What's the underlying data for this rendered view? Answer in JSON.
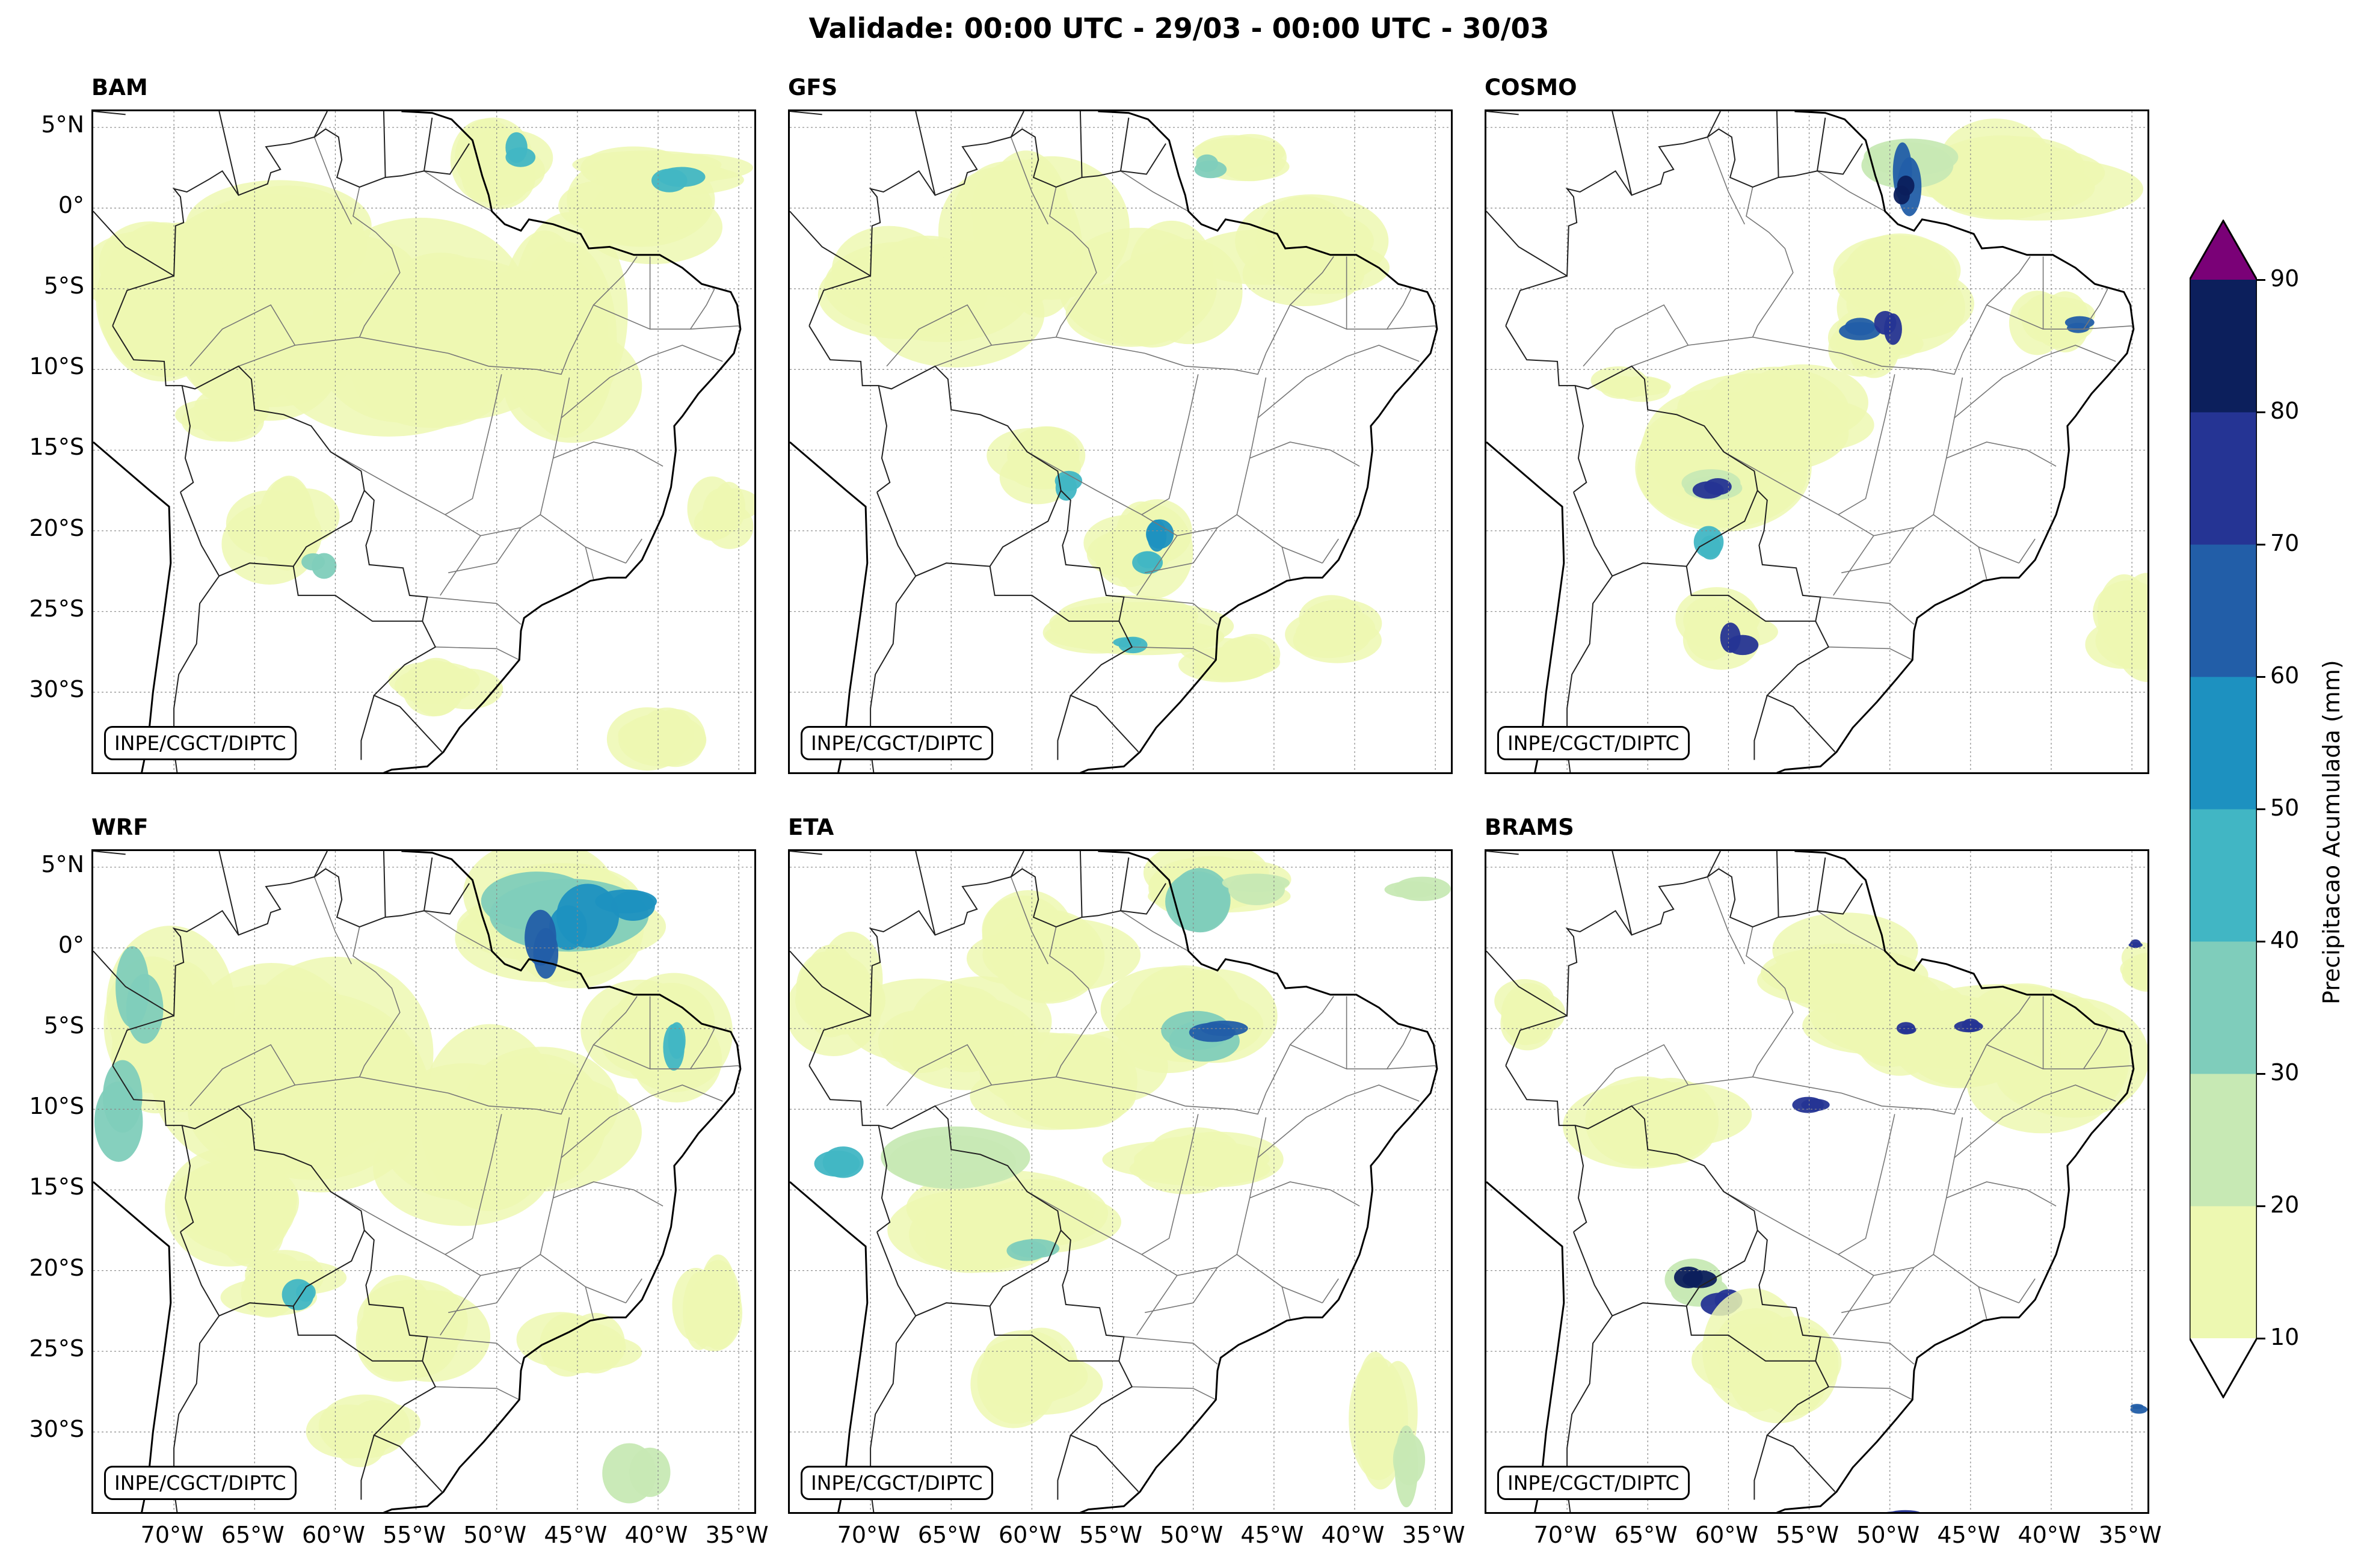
{
  "title": "Validade: 00:00 UTC - 29/03 - 00:00 UTC - 30/03",
  "credit": "INPE/CGCT/DIPTC",
  "panels": [
    {
      "name": "BAM"
    },
    {
      "name": "GFS"
    },
    {
      "name": "COSMO"
    },
    {
      "name": "WRF"
    },
    {
      "name": "ETA"
    },
    {
      "name": "BRAMS"
    }
  ],
  "lat_labels": [
    "5°N",
    "0°",
    "5°S",
    "10°S",
    "15°S",
    "20°S",
    "25°S",
    "30°S"
  ],
  "lon_labels": [
    "70°W",
    "65°W",
    "60°W",
    "55°W",
    "50°W",
    "45°W",
    "40°W",
    "35°W"
  ],
  "colorbar": {
    "title": "Precipitacao Acumulada (mm)",
    "ticks": [
      "10",
      "20",
      "30",
      "40",
      "50",
      "60",
      "70",
      "80",
      "90"
    ],
    "colors": [
      "#edf8b1",
      "#c7e9b4",
      "#7fcdbb",
      "#41b6c4",
      "#1d91c0",
      "#225ea8",
      "#253494",
      "#0c1f5c"
    ],
    "over_color": "#7a0177",
    "under_color": "#ffffff"
  }
}
